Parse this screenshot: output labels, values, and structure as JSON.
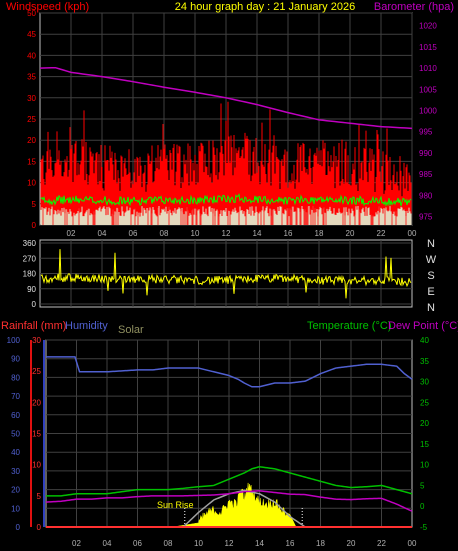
{
  "header": {
    "windspeed_label": "Windspeed (kph)",
    "title": "24 hour graph day : 21 January 2026",
    "barometer_label": "Barometer (hpa)"
  },
  "colors": {
    "wind_gust": "#ff0000",
    "wind_avg": "#00ff00",
    "wind_low": "#e0ffe0",
    "barometer": "#c000c0",
    "direction": "#ffff00",
    "humidity": "#5060d0",
    "temperature": "#00c000",
    "dewpoint": "#c000c0",
    "rain": "#ff3030",
    "solar": "#ffff00",
    "solar_max": "#a0a0a0",
    "grid": "#404040",
    "panel_border": "#c0c0c0",
    "axis_wind": "#ff0000",
    "axis_baro": "#c000c0",
    "axis_temp": "#00c000",
    "axis_humidity": "#5060d0"
  },
  "chart_data": [
    {
      "type": "line",
      "title": "24 hour graph day : 21 January 2026",
      "x_ticks": [
        "02",
        "04",
        "06",
        "08",
        "10",
        "12",
        "14",
        "16",
        "18",
        "20",
        "22",
        "00"
      ],
      "left_axis": {
        "label": "Windspeed (kph)",
        "ticks": [
          0,
          5,
          10,
          15,
          20,
          25,
          30,
          35,
          40,
          45,
          50
        ],
        "ylim": [
          0,
          50
        ]
      },
      "right_axis": {
        "label": "Barometer (hpa)",
        "ticks": [
          975,
          980,
          985,
          990,
          995,
          1000,
          1005,
          1010,
          1015,
          1020
        ],
        "ylim": [
          973,
          1023
        ]
      },
      "series": [
        {
          "name": "Windspeed (kph)",
          "axis": "left",
          "hours": [
            0,
            2,
            4,
            6,
            8,
            10,
            12,
            13,
            14,
            16,
            18,
            20,
            22,
            24
          ],
          "values": [
            12,
            13,
            12,
            11,
            12,
            13,
            14,
            16,
            13,
            12,
            13,
            12,
            11,
            9
          ]
        },
        {
          "name": "Barometer (hpa)",
          "axis": "right",
          "hours": [
            0,
            1,
            2,
            4,
            6,
            8,
            10,
            12,
            14,
            16,
            18,
            20,
            22,
            24
          ],
          "values": [
            1010,
            1010.1,
            1009,
            1008,
            1006.8,
            1005.5,
            1004.3,
            1003,
            1001.4,
            999.5,
            997.8,
            997,
            996.2,
            995.8
          ]
        }
      ]
    },
    {
      "type": "line",
      "left_axis": {
        "ticks": [
          0,
          90,
          180,
          270,
          360
        ],
        "ylim": [
          0,
          360
        ]
      },
      "right_axis": {
        "ticks": [
          "N",
          "W",
          "S",
          "E",
          "N"
        ]
      },
      "series": [
        {
          "hours": [
            0,
            2,
            4,
            6,
            8,
            10,
            12,
            14,
            16,
            18,
            20,
            22,
            24
          ],
          "values": [
            150,
            155,
            150,
            150,
            145,
            140,
            140,
            150,
            150,
            140,
            135,
            140,
            130
          ]
        }
      ]
    },
    {
      "type": "line",
      "x_ticks": [
        "02",
        "04",
        "06",
        "08",
        "10",
        "12",
        "14",
        "16",
        "18",
        "20",
        "22",
        "00"
      ],
      "labels": {
        "rainfall": "Rainfall (mm)",
        "humidity": "Humidity",
        "solar": "Solar",
        "temperature": "Temperature (°C)",
        "dewpoint": "Dew Point (°C)",
        "sunrise": "Sun Rise"
      },
      "humidity_axis": {
        "ticks": [
          0,
          10,
          20,
          30,
          40,
          50,
          60,
          70,
          80,
          90,
          100
        ],
        "ylim": [
          0,
          100
        ]
      },
      "rain_axis": {
        "ticks": [
          0,
          5,
          10,
          15,
          20,
          25,
          30
        ],
        "ylim": [
          0,
          30
        ]
      },
      "temp_axis": {
        "ticks": [
          -5,
          0,
          5,
          10,
          15,
          20,
          25,
          30,
          35,
          40
        ],
        "ylim": [
          -5,
          40
        ]
      },
      "series": [
        {
          "name": "Humidity",
          "axis": "humidity",
          "hours": [
            0,
            1,
            1.9,
            2.2,
            4,
            6,
            7,
            8,
            9,
            10,
            11,
            12,
            12.6,
            13,
            13.5,
            14,
            15,
            16,
            17,
            18,
            19,
            20,
            21,
            22,
            23,
            23.5,
            24
          ],
          "values": [
            91,
            91,
            91,
            83,
            83,
            84,
            84,
            85,
            85,
            85,
            83,
            81,
            79,
            77,
            75,
            75,
            77,
            77,
            78,
            82,
            85,
            86,
            87,
            87,
            86,
            82,
            79
          ]
        },
        {
          "name": "Temperature (°C)",
          "axis": "temp",
          "hours": [
            0,
            1,
            2,
            3,
            4,
            5,
            6,
            7,
            8,
            9,
            10,
            11,
            12,
            13,
            13.5,
            14,
            15,
            16,
            17,
            18,
            19,
            20,
            21,
            22,
            23,
            24
          ],
          "values": [
            2.5,
            2.5,
            3,
            3,
            3,
            3.5,
            4,
            4,
            4,
            4.3,
            4.7,
            5,
            6.5,
            8,
            9,
            9.5,
            9,
            8,
            7,
            6,
            5,
            4.5,
            4.7,
            5,
            4,
            3
          ]
        },
        {
          "name": "Dew Point (°C)",
          "axis": "temp",
          "hours": [
            0,
            1,
            2,
            3,
            4,
            5,
            6,
            7,
            8,
            9,
            10,
            11,
            12,
            13,
            14,
            15,
            16,
            17,
            18,
            19,
            20,
            21,
            22,
            23,
            24
          ],
          "values": [
            1,
            1.2,
            1.7,
            1.7,
            2,
            2,
            2.3,
            2.5,
            2.5,
            2.5,
            2.6,
            2.7,
            3,
            3.5,
            3.7,
            3.3,
            2.9,
            2.8,
            2.2,
            1.7,
            1.6,
            1.8,
            1.9,
            0.5,
            -1.2
          ]
        },
        {
          "name": "Solar",
          "axis": "temp",
          "hours": [
            0,
            8.3,
            9,
            10,
            10.5,
            11,
            11.5,
            12,
            12.5,
            12.8,
            13,
            13.3,
            13.6,
            14,
            14.5,
            15,
            15.5,
            16,
            16.4,
            24
          ],
          "values": [
            -5,
            -5,
            -4.6,
            -4,
            -2,
            -1,
            -1.5,
            1,
            0.5,
            4,
            2,
            5,
            3,
            1,
            0.5,
            1,
            -1,
            -2,
            -5,
            -5
          ]
        },
        {
          "name": "Solar max",
          "axis": "temp",
          "hours": [
            9,
            10,
            11,
            12,
            13,
            14,
            15,
            16,
            17
          ],
          "values": [
            -5,
            -1.5,
            1.5,
            3,
            3.8,
            3,
            1,
            -2.5,
            -5
          ]
        },
        {
          "name": "Rainfall (mm)",
          "axis": "rain",
          "hours": [
            0,
            24
          ],
          "values": [
            0,
            0
          ]
        }
      ],
      "sunrise_hour": 9.1,
      "sunset_hour": 16.8
    }
  ]
}
